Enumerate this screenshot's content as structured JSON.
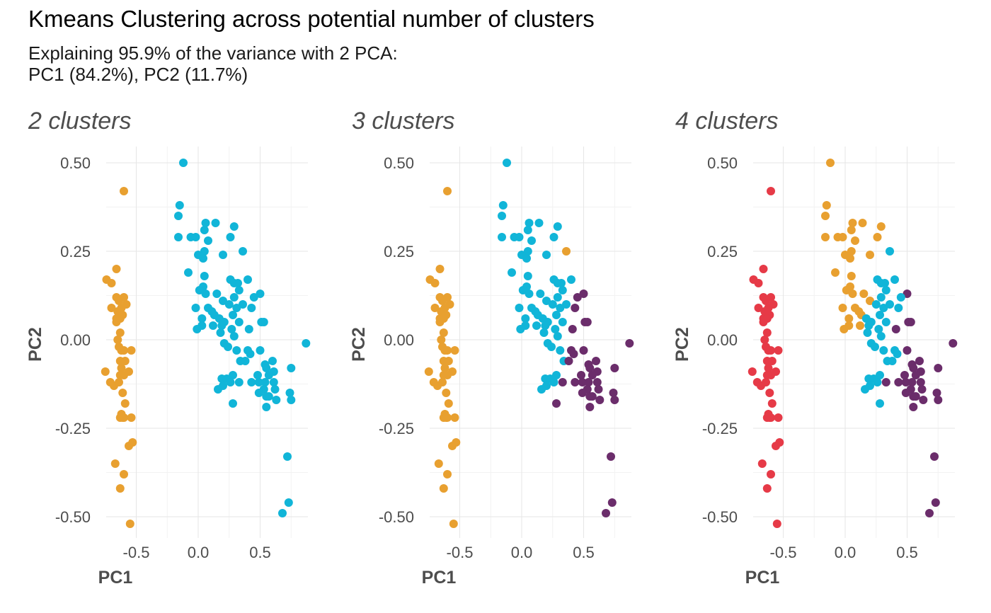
{
  "title": "Kmeans Clustering across potential number of clusters",
  "subtitle_lines": [
    "Explaining 95.9% of the variance with 2 PCA:",
    "PC1 (84.2%), PC2 (11.7%)"
  ],
  "colors": {
    "c1": "#E8A030",
    "c2": "#11B5D8",
    "c3": "#6B2D6B",
    "c4": "#E63A47"
  },
  "chart_data": {
    "type": "scatter",
    "xlabel": "PC1",
    "ylabel": "PC2",
    "xlim": [
      -0.8,
      0.9
    ],
    "ylim": [
      -0.55,
      0.55
    ],
    "x_ticks": [
      -0.5,
      0.0,
      0.5
    ],
    "x_tick_labels": [
      "-0.5",
      "0.0",
      "0.5"
    ],
    "y_ticks": [
      -0.5,
      -0.25,
      0.0,
      0.25,
      0.5
    ],
    "y_tick_labels": [
      "-0.50",
      "-0.25",
      "0.00",
      "0.25",
      "0.50"
    ],
    "grid": true,
    "panels": [
      {
        "title": "2 clusters"
      },
      {
        "title": "3 clusters"
      },
      {
        "title": "4 clusters"
      }
    ],
    "points": [
      {
        "x": -0.6,
        "y": 0.42,
        "k2": 1,
        "k3": 1,
        "k4": 4
      },
      {
        "x": -0.74,
        "y": 0.17,
        "k2": 1,
        "k3": 1,
        "k4": 4
      },
      {
        "x": -0.66,
        "y": 0.2,
        "k2": 1,
        "k3": 1,
        "k4": 4
      },
      {
        "x": -0.7,
        "y": 0.16,
        "k2": 1,
        "k3": 1,
        "k4": 4
      },
      {
        "x": -0.66,
        "y": 0.12,
        "k2": 1,
        "k3": 1,
        "k4": 4
      },
      {
        "x": -0.6,
        "y": 0.12,
        "k2": 1,
        "k3": 1,
        "k4": 4
      },
      {
        "x": -0.64,
        "y": 0.11,
        "k2": 1,
        "k3": 1,
        "k4": 4
      },
      {
        "x": -0.58,
        "y": 0.1,
        "k2": 1,
        "k3": 1,
        "k4": 4
      },
      {
        "x": -0.7,
        "y": 0.09,
        "k2": 1,
        "k3": 1,
        "k4": 4
      },
      {
        "x": -0.62,
        "y": 0.09,
        "k2": 1,
        "k3": 1,
        "k4": 4
      },
      {
        "x": -0.65,
        "y": 0.08,
        "k2": 1,
        "k3": 1,
        "k4": 4
      },
      {
        "x": -0.61,
        "y": 0.07,
        "k2": 1,
        "k3": 1,
        "k4": 4
      },
      {
        "x": -0.66,
        "y": 0.06,
        "k2": 1,
        "k3": 1,
        "k4": 4
      },
      {
        "x": -0.63,
        "y": 0.06,
        "k2": 1,
        "k3": 1,
        "k4": 4
      },
      {
        "x": -0.66,
        "y": 0.05,
        "k2": 1,
        "k3": 1,
        "k4": 4
      },
      {
        "x": -0.63,
        "y": 0.02,
        "k2": 1,
        "k3": 1,
        "k4": 4
      },
      {
        "x": -0.65,
        "y": 0.0,
        "k2": 1,
        "k3": 1,
        "k4": 4
      },
      {
        "x": -0.64,
        "y": -0.02,
        "k2": 1,
        "k3": 1,
        "k4": 4
      },
      {
        "x": -0.6,
        "y": -0.03,
        "k2": 1,
        "k3": 1,
        "k4": 4
      },
      {
        "x": -0.62,
        "y": -0.03,
        "k2": 1,
        "k3": 1,
        "k4": 4
      },
      {
        "x": -0.54,
        "y": -0.03,
        "k2": 1,
        "k3": 1,
        "k4": 4
      },
      {
        "x": -0.63,
        "y": -0.06,
        "k2": 1,
        "k3": 1,
        "k4": 4
      },
      {
        "x": -0.59,
        "y": -0.06,
        "k2": 1,
        "k3": 1,
        "k4": 4
      },
      {
        "x": -0.62,
        "y": -0.08,
        "k2": 1,
        "k3": 1,
        "k4": 4
      },
      {
        "x": -0.75,
        "y": -0.09,
        "k2": 1,
        "k3": 1,
        "k4": 4
      },
      {
        "x": -0.63,
        "y": -0.1,
        "k2": 1,
        "k3": 1,
        "k4": 4
      },
      {
        "x": -0.6,
        "y": -0.1,
        "k2": 1,
        "k3": 1,
        "k4": 4
      },
      {
        "x": -0.56,
        "y": -0.09,
        "k2": 1,
        "k3": 1,
        "k4": 4
      },
      {
        "x": -0.64,
        "y": -0.12,
        "k2": 1,
        "k3": 1,
        "k4": 4
      },
      {
        "x": -0.71,
        "y": -0.12,
        "k2": 1,
        "k3": 1,
        "k4": 4
      },
      {
        "x": -0.68,
        "y": -0.13,
        "k2": 1,
        "k3": 1,
        "k4": 4
      },
      {
        "x": -0.61,
        "y": -0.15,
        "k2": 1,
        "k3": 1,
        "k4": 4
      },
      {
        "x": -0.59,
        "y": -0.18,
        "k2": 1,
        "k3": 1,
        "k4": 4
      },
      {
        "x": -0.62,
        "y": -0.21,
        "k2": 1,
        "k3": 1,
        "k4": 4
      },
      {
        "x": -0.63,
        "y": -0.22,
        "k2": 1,
        "k3": 1,
        "k4": 4
      },
      {
        "x": -0.6,
        "y": -0.22,
        "k2": 1,
        "k3": 1,
        "k4": 4
      },
      {
        "x": -0.61,
        "y": -0.22,
        "k2": 1,
        "k3": 1,
        "k4": 4
      },
      {
        "x": -0.54,
        "y": -0.22,
        "k2": 1,
        "k3": 1,
        "k4": 4
      },
      {
        "x": -0.53,
        "y": -0.29,
        "k2": 1,
        "k3": 1,
        "k4": 4
      },
      {
        "x": -0.56,
        "y": -0.3,
        "k2": 1,
        "k3": 1,
        "k4": 4
      },
      {
        "x": -0.67,
        "y": -0.35,
        "k2": 1,
        "k3": 1,
        "k4": 4
      },
      {
        "x": -0.6,
        "y": -0.38,
        "k2": 1,
        "k3": 1,
        "k4": 4
      },
      {
        "x": -0.63,
        "y": -0.42,
        "k2": 1,
        "k3": 1,
        "k4": 4
      },
      {
        "x": -0.55,
        "y": -0.52,
        "k2": 1,
        "k3": 1,
        "k4": 4
      },
      {
        "x": -0.12,
        "y": 0.5,
        "k2": 2,
        "k3": 2,
        "k4": 1
      },
      {
        "x": -0.15,
        "y": 0.38,
        "k2": 2,
        "k3": 2,
        "k4": 1
      },
      {
        "x": -0.16,
        "y": 0.35,
        "k2": 2,
        "k3": 2,
        "k4": 1
      },
      {
        "x": 0.06,
        "y": 0.33,
        "k2": 2,
        "k3": 2,
        "k4": 1
      },
      {
        "x": 0.14,
        "y": 0.33,
        "k2": 2,
        "k3": 2,
        "k4": 1
      },
      {
        "x": 0.29,
        "y": 0.32,
        "k2": 2,
        "k3": 2,
        "k4": 1
      },
      {
        "x": 0.05,
        "y": 0.31,
        "k2": 2,
        "k3": 2,
        "k4": 1
      },
      {
        "x": 0.26,
        "y": 0.29,
        "k2": 2,
        "k3": 2,
        "k4": 1
      },
      {
        "x": -0.16,
        "y": 0.29,
        "k2": 2,
        "k3": 2,
        "k4": 1
      },
      {
        "x": -0.06,
        "y": 0.29,
        "k2": 2,
        "k3": 2,
        "k4": 1
      },
      {
        "x": -0.02,
        "y": 0.29,
        "k2": 2,
        "k3": 2,
        "k4": 1
      },
      {
        "x": 0.08,
        "y": 0.28,
        "k2": 2,
        "k3": 2,
        "k4": 1
      },
      {
        "x": 0.05,
        "y": 0.25,
        "k2": 2,
        "k3": 2,
        "k4": 1
      },
      {
        "x": 0.36,
        "y": 0.25,
        "k2": 2,
        "k3": 1,
        "k4": 2
      },
      {
        "x": 0.0,
        "y": 0.24,
        "k2": 2,
        "k3": 2,
        "k4": 1
      },
      {
        "x": 0.2,
        "y": 0.24,
        "k2": 2,
        "k3": 2,
        "k4": 1
      },
      {
        "x": 0.04,
        "y": 0.23,
        "k2": 2,
        "k3": 2,
        "k4": 1
      },
      {
        "x": -0.08,
        "y": 0.19,
        "k2": 2,
        "k3": 2,
        "k4": 1
      },
      {
        "x": 0.05,
        "y": 0.18,
        "k2": 2,
        "k3": 2,
        "k4": 1
      },
      {
        "x": 0.26,
        "y": 0.17,
        "k2": 2,
        "k3": 2,
        "k4": 2
      },
      {
        "x": 0.29,
        "y": 0.16,
        "k2": 2,
        "k3": 2,
        "k4": 2
      },
      {
        "x": 0.32,
        "y": 0.16,
        "k2": 2,
        "k3": 2,
        "k4": 2
      },
      {
        "x": 0.4,
        "y": 0.17,
        "k2": 2,
        "k3": 2,
        "k4": 2
      },
      {
        "x": 0.33,
        "y": 0.14,
        "k2": 2,
        "k3": 2,
        "k4": 2
      },
      {
        "x": 0.04,
        "y": 0.15,
        "k2": 2,
        "k3": 2,
        "k4": 1
      },
      {
        "x": 0.01,
        "y": 0.14,
        "k2": 2,
        "k3": 2,
        "k4": 1
      },
      {
        "x": 0.06,
        "y": 0.13,
        "k2": 2,
        "k3": 2,
        "k4": 1
      },
      {
        "x": 0.15,
        "y": 0.13,
        "k2": 2,
        "k3": 2,
        "k4": 1
      },
      {
        "x": 0.29,
        "y": 0.12,
        "k2": 2,
        "k3": 2,
        "k4": 2
      },
      {
        "x": 0.5,
        "y": 0.13,
        "k2": 2,
        "k3": 3,
        "k4": 3
      },
      {
        "x": 0.45,
        "y": 0.12,
        "k2": 2,
        "k3": 3,
        "k4": 2
      },
      {
        "x": 0.2,
        "y": 0.11,
        "k2": 2,
        "k3": 2,
        "k4": 1
      },
      {
        "x": 0.25,
        "y": 0.1,
        "k2": 2,
        "k3": 2,
        "k4": 2
      },
      {
        "x": 0.36,
        "y": 0.1,
        "k2": 2,
        "k3": 2,
        "k4": 2
      },
      {
        "x": 0.31,
        "y": 0.09,
        "k2": 2,
        "k3": 2,
        "k4": 2
      },
      {
        "x": 0.43,
        "y": 0.09,
        "k2": 2,
        "k3": 3,
        "k4": 2
      },
      {
        "x": -0.02,
        "y": 0.09,
        "k2": 2,
        "k3": 2,
        "k4": 1
      },
      {
        "x": 0.08,
        "y": 0.09,
        "k2": 2,
        "k3": 2,
        "k4": 1
      },
      {
        "x": 0.11,
        "y": 0.08,
        "k2": 2,
        "k3": 2,
        "k4": 1
      },
      {
        "x": 0.13,
        "y": 0.07,
        "k2": 2,
        "k3": 2,
        "k4": 1
      },
      {
        "x": 0.28,
        "y": 0.07,
        "k2": 2,
        "k3": 2,
        "k4": 2
      },
      {
        "x": 0.03,
        "y": 0.06,
        "k2": 2,
        "k3": 2,
        "k4": 1
      },
      {
        "x": 0.17,
        "y": 0.06,
        "k2": 2,
        "k3": 2,
        "k4": 2
      },
      {
        "x": 0.21,
        "y": 0.05,
        "k2": 2,
        "k3": 2,
        "k4": 2
      },
      {
        "x": 0.33,
        "y": 0.05,
        "k2": 2,
        "k3": 2,
        "k4": 2
      },
      {
        "x": 0.51,
        "y": 0.05,
        "k2": 2,
        "k3": 3,
        "k4": 3
      },
      {
        "x": 0.53,
        "y": 0.05,
        "k2": 2,
        "k3": 3,
        "k4": 3
      },
      {
        "x": 0.03,
        "y": 0.04,
        "k2": 2,
        "k3": 2,
        "k4": 1
      },
      {
        "x": 0.12,
        "y": 0.04,
        "k2": 2,
        "k3": 2,
        "k4": 1
      },
      {
        "x": 0.19,
        "y": 0.04,
        "k2": 2,
        "k3": 2,
        "k4": 2
      },
      {
        "x": -0.01,
        "y": 0.03,
        "k2": 2,
        "k3": 2,
        "k4": 1
      },
      {
        "x": 0.27,
        "y": 0.03,
        "k2": 2,
        "k3": 2,
        "k4": 2
      },
      {
        "x": 0.41,
        "y": 0.03,
        "k2": 2,
        "k3": 3,
        "k4": 3
      },
      {
        "x": 0.18,
        "y": 0.02,
        "k2": 2,
        "k3": 2,
        "k4": 2
      },
      {
        "x": 0.29,
        "y": 0.01,
        "k2": 2,
        "k3": 2,
        "k4": 2
      },
      {
        "x": 0.21,
        "y": -0.01,
        "k2": 2,
        "k3": 2,
        "k4": 2
      },
      {
        "x": 0.87,
        "y": -0.01,
        "k2": 2,
        "k3": 3,
        "k4": 3
      },
      {
        "x": 0.24,
        "y": -0.02,
        "k2": 2,
        "k3": 2,
        "k4": 2
      },
      {
        "x": 0.4,
        "y": -0.03,
        "k2": 2,
        "k3": 3,
        "k4": 2
      },
      {
        "x": 0.31,
        "y": -0.03,
        "k2": 2,
        "k3": 2,
        "k4": 2
      },
      {
        "x": 0.42,
        "y": -0.04,
        "k2": 2,
        "k3": 3,
        "k4": 2
      },
      {
        "x": 0.5,
        "y": -0.03,
        "k2": 2,
        "k3": 3,
        "k4": 3
      },
      {
        "x": 0.6,
        "y": -0.06,
        "k2": 2,
        "k3": 3,
        "k4": 3
      },
      {
        "x": 0.34,
        "y": -0.06,
        "k2": 2,
        "k3": 2,
        "k4": 2
      },
      {
        "x": 0.38,
        "y": -0.06,
        "k2": 2,
        "k3": 3,
        "k4": 2
      },
      {
        "x": 0.54,
        "y": -0.07,
        "k2": 2,
        "k3": 3,
        "k4": 3
      },
      {
        "x": 0.55,
        "y": -0.08,
        "k2": 2,
        "k3": 3,
        "k4": 3
      },
      {
        "x": 0.61,
        "y": -0.09,
        "k2": 2,
        "k3": 3,
        "k4": 3
      },
      {
        "x": 0.75,
        "y": -0.08,
        "k2": 2,
        "k3": 3,
        "k4": 3
      },
      {
        "x": 0.48,
        "y": -0.1,
        "k2": 2,
        "k3": 3,
        "k4": 3
      },
      {
        "x": 0.57,
        "y": -0.1,
        "k2": 2,
        "k3": 3,
        "k4": 3
      },
      {
        "x": 0.28,
        "y": -0.1,
        "k2": 2,
        "k3": 2,
        "k4": 2
      },
      {
        "x": 0.19,
        "y": -0.11,
        "k2": 2,
        "k3": 2,
        "k4": 2
      },
      {
        "x": 0.23,
        "y": -0.11,
        "k2": 2,
        "k3": 2,
        "k4": 2
      },
      {
        "x": 0.54,
        "y": -0.12,
        "k2": 2,
        "k3": 3,
        "k4": 3
      },
      {
        "x": 0.61,
        "y": -0.12,
        "k2": 2,
        "k3": 3,
        "k4": 3
      },
      {
        "x": 0.26,
        "y": -0.12,
        "k2": 2,
        "k3": 2,
        "k4": 2
      },
      {
        "x": 0.33,
        "y": -0.12,
        "k2": 2,
        "k3": 3,
        "k4": 3
      },
      {
        "x": 0.43,
        "y": -0.12,
        "k2": 2,
        "k3": 3,
        "k4": 3
      },
      {
        "x": 0.49,
        "y": -0.12,
        "k2": 2,
        "k3": 3,
        "k4": 3
      },
      {
        "x": 0.2,
        "y": -0.13,
        "k2": 2,
        "k3": 2,
        "k4": 2
      },
      {
        "x": 0.16,
        "y": -0.14,
        "k2": 2,
        "k3": 2,
        "k4": 2
      },
      {
        "x": 0.53,
        "y": -0.14,
        "k2": 2,
        "k3": 3,
        "k4": 3
      },
      {
        "x": 0.62,
        "y": -0.14,
        "k2": 2,
        "k3": 3,
        "k4": 3
      },
      {
        "x": 0.74,
        "y": -0.15,
        "k2": 2,
        "k3": 3,
        "k4": 3
      },
      {
        "x": 0.49,
        "y": -0.15,
        "k2": 2,
        "k3": 3,
        "k4": 3
      },
      {
        "x": 0.55,
        "y": -0.16,
        "k2": 2,
        "k3": 3,
        "k4": 3
      },
      {
        "x": 0.57,
        "y": -0.16,
        "k2": 2,
        "k3": 3,
        "k4": 3
      },
      {
        "x": 0.63,
        "y": -0.17,
        "k2": 2,
        "k3": 3,
        "k4": 3
      },
      {
        "x": 0.75,
        "y": -0.17,
        "k2": 2,
        "k3": 3,
        "k4": 3
      },
      {
        "x": 0.55,
        "y": -0.19,
        "k2": 2,
        "k3": 3,
        "k4": 3
      },
      {
        "x": 0.28,
        "y": -0.18,
        "k2": 2,
        "k3": 3,
        "k4": 2
      },
      {
        "x": 0.72,
        "y": -0.33,
        "k2": 2,
        "k3": 3,
        "k4": 3
      },
      {
        "x": 0.73,
        "y": -0.46,
        "k2": 2,
        "k3": 3,
        "k4": 3
      },
      {
        "x": 0.68,
        "y": -0.49,
        "k2": 2,
        "k3": 3,
        "k4": 3
      }
    ]
  }
}
